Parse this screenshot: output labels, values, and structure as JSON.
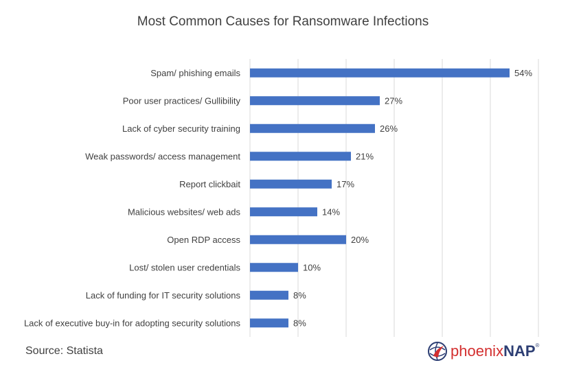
{
  "chart_data": {
    "type": "bar",
    "orientation": "horizontal",
    "title": "Most Common Causes for Ransomware Infections",
    "categories": [
      "Spam/ phishing emails",
      "Poor user practices/ Gullibility",
      "Lack of cyber security training",
      "Weak passwords/ access management",
      "Report clickbait",
      "Malicious websites/ web ads",
      "Open RDP access",
      "Lost/ stolen user credentials",
      "Lack of funding for IT security solutions",
      "Lack of executive buy-in for adopting security solutions"
    ],
    "values": [
      54,
      27,
      26,
      21,
      17,
      14,
      20,
      10,
      8,
      8
    ],
    "value_labels": [
      "54%",
      "27%",
      "26%",
      "21%",
      "17%",
      "14%",
      "20%",
      "10%",
      "8%",
      "8%"
    ],
    "xlim": [
      0,
      60
    ],
    "grid": true,
    "bar_color": "#4472c4"
  },
  "footer": {
    "source": "Source: Statista",
    "logo_part1": "phoenix",
    "logo_part2": "NAP",
    "logo_reg": "®"
  },
  "colors": {
    "logo_red": "#d32f2f",
    "logo_navy": "#2c3e73"
  },
  "icons": {
    "logo": "phoenix-globe-icon"
  }
}
